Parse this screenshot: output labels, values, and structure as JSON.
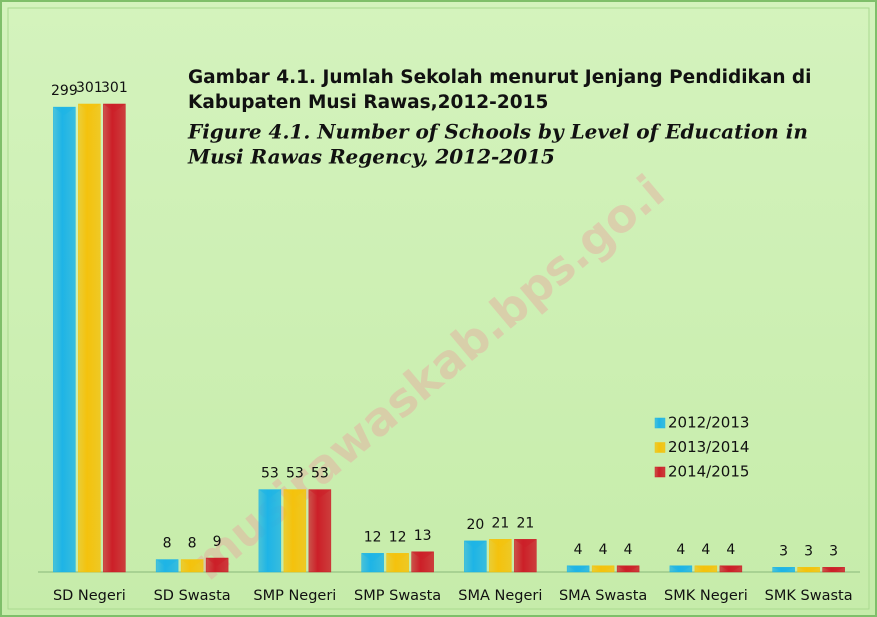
{
  "chart_data": {
    "type": "bar",
    "title": "Gambar 4.1. Jumlah Sekolah menurut Jenjang Pendidikan di",
    "title_line2": "Kabupaten Musi Rawas,2012-2015",
    "subtitle": "Figure 4.1. Number of Schools by Level of Education in",
    "subtitle_line2": "Musi Rawas Regency, 2012-2015",
    "watermark": "musirawaskab.bps.go.i",
    "categories": [
      "SD Negeri",
      "SD Swasta",
      "SMP Negeri",
      "SMP Swasta",
      "SMA Negeri",
      "SMA Swasta",
      "SMK Negeri",
      "SMK Swasta"
    ],
    "series": [
      {
        "name": "2012/2013",
        "color": "#1eb4e6",
        "values": [
          299,
          8,
          53,
          12,
          20,
          4,
          4,
          3
        ]
      },
      {
        "name": "2013/2014",
        "color": "#f4c20d",
        "values": [
          301,
          8,
          53,
          12,
          21,
          4,
          4,
          3
        ]
      },
      {
        "name": "2014/2015",
        "color": "#cc1f28",
        "values": [
          301,
          9,
          53,
          13,
          21,
          4,
          4,
          3
        ]
      }
    ],
    "ylim": [
      0,
      310
    ],
    "legend": "right"
  }
}
